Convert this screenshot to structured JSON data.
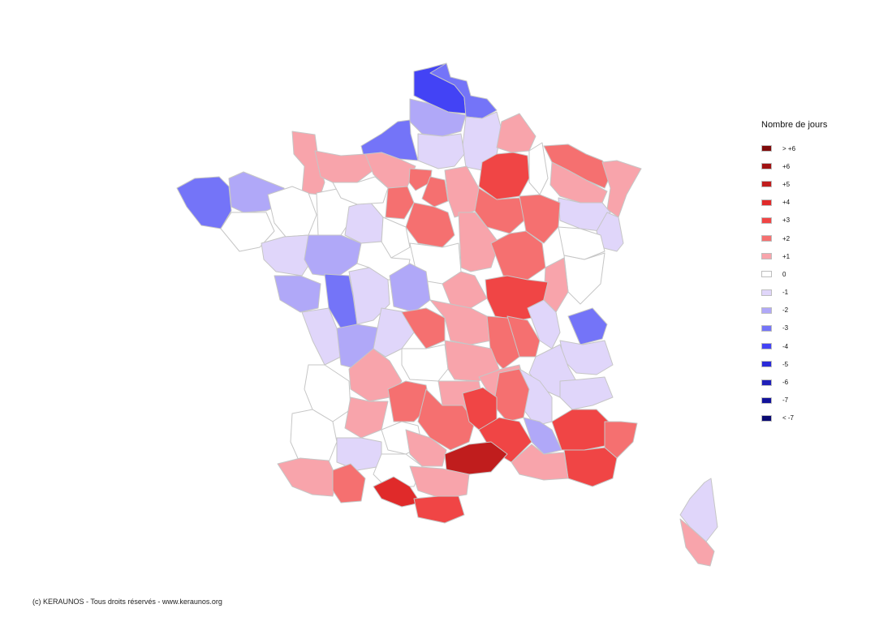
{
  "legend": {
    "title": "Nombre de jours",
    "items": [
      {
        "label": "> +6",
        "color": "#7f0b0b"
      },
      {
        "label": "+6",
        "color": "#a01313"
      },
      {
        "label": "+5",
        "color": "#c01d1d"
      },
      {
        "label": "+4",
        "color": "#e02a2a"
      },
      {
        "label": "+3",
        "color": "#f04545"
      },
      {
        "label": "+2",
        "color": "#f57070"
      },
      {
        "label": "+1",
        "color": "#f8a4ab"
      },
      {
        "label": "0",
        "color": "#ffffff"
      },
      {
        "label": "-1",
        "color": "#e0d6fa"
      },
      {
        "label": "-2",
        "color": "#b0a8f8"
      },
      {
        "label": "-3",
        "color": "#7474f8"
      },
      {
        "label": "-4",
        "color": "#4343f5"
      },
      {
        "label": "-5",
        "color": "#2a2ad8"
      },
      {
        "label": "-6",
        "color": "#1f1fb8"
      },
      {
        "label": "-7",
        "color": "#12129a"
      },
      {
        "label": "< -7",
        "color": "#0a0a72"
      }
    ]
  },
  "copyright": "(c) KERAUNOS - Tous droits réservés - www.keraunos.org"
}
